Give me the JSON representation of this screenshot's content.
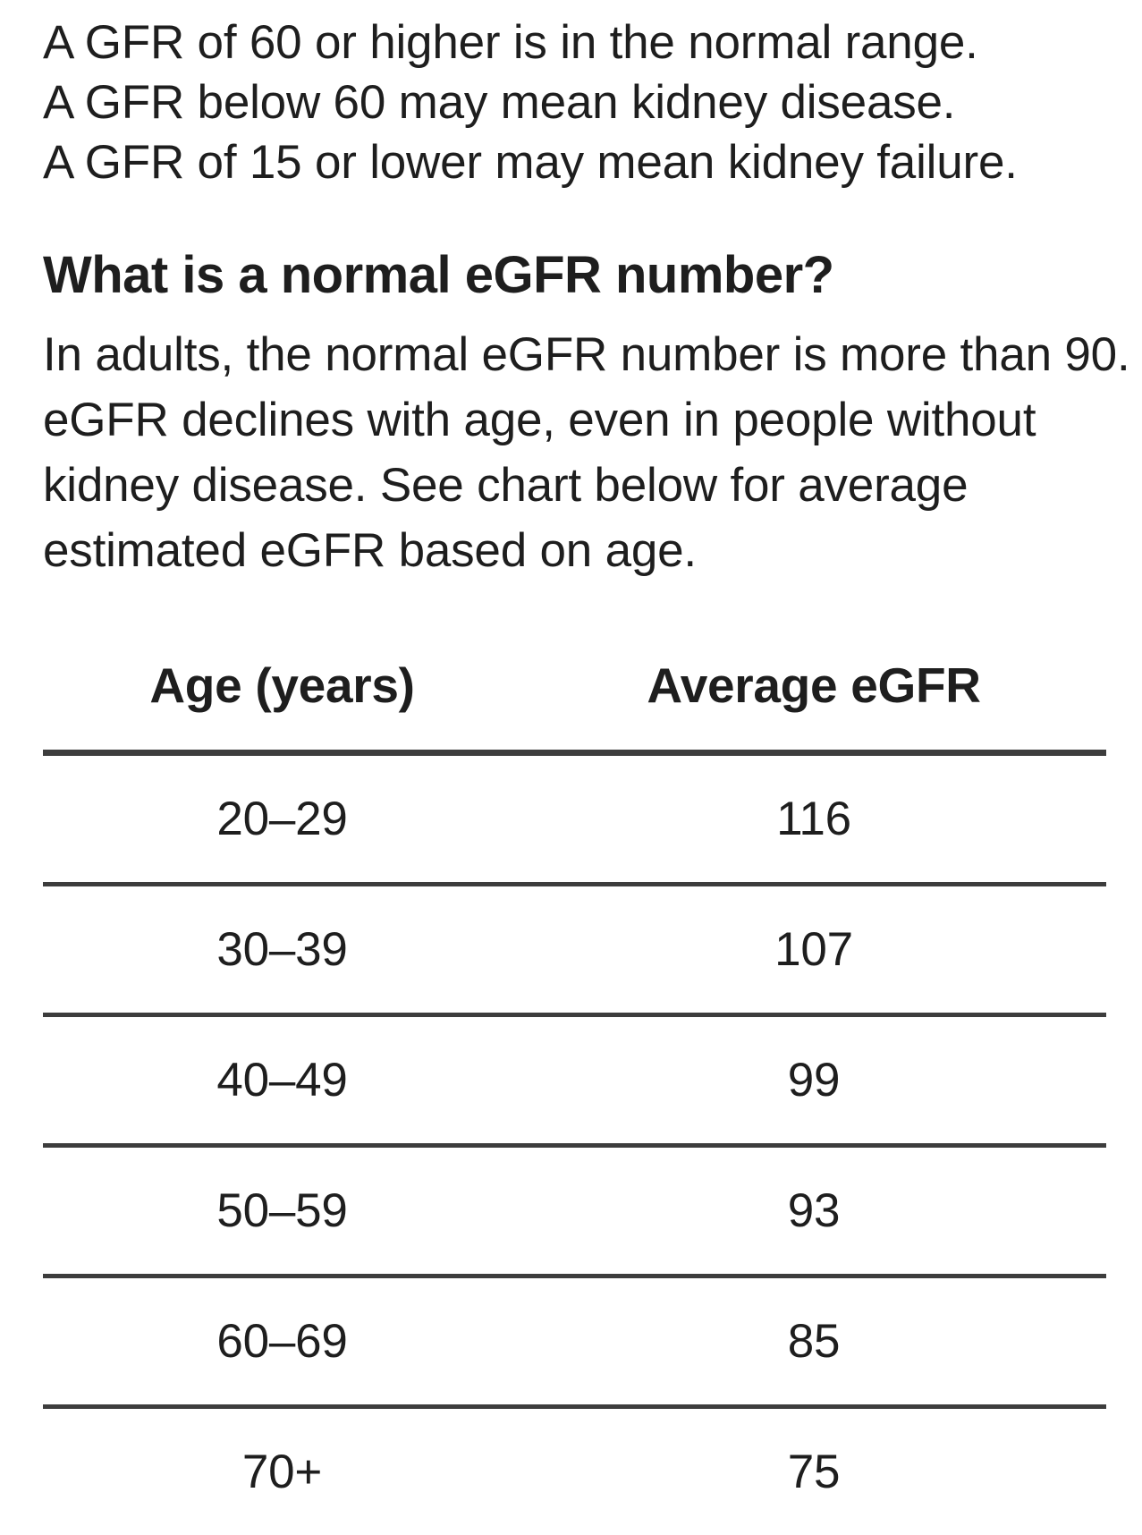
{
  "intro": {
    "lines": [
      "A GFR of 60 or higher is in the normal range.",
      "A GFR below 60 may mean kidney disease.",
      "A GFR of 15 or lower may mean kidney failure."
    ]
  },
  "section": {
    "heading": "What is a normal eGFR number?",
    "body_lines": [
      "In adults, the normal eGFR number is more than 90.",
      "eGFR declines with age, even in people without",
      "kidney disease. See chart below for average",
      "estimated eGFR based on age."
    ]
  },
  "table": {
    "columns": [
      "Age (years)",
      "Average eGFR"
    ],
    "rows": [
      {
        "age": "20–29",
        "egfr": "116"
      },
      {
        "age": "30–39",
        "egfr": "107"
      },
      {
        "age": "40–49",
        "egfr": "99"
      },
      {
        "age": "50–59",
        "egfr": "93"
      },
      {
        "age": "60–69",
        "egfr": "85"
      },
      {
        "age": "70+",
        "egfr": "75"
      }
    ]
  },
  "colors": {
    "text": "#1e1e1e",
    "rule": "#3d3d3d",
    "background": "#ffffff"
  }
}
